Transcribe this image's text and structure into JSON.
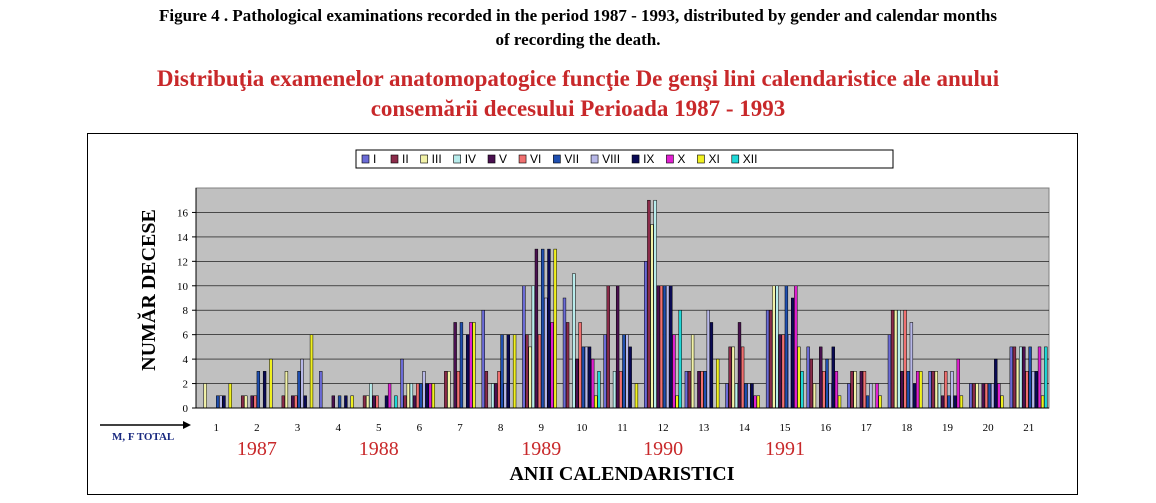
{
  "caption": {
    "line1": "Figure 4 . Pathological examinations recorded in the period 1987 - 1993, distributed by gender and calendar months",
    "line2": "of recording the death."
  },
  "title": {
    "line1": "Distribuţia examenelor anatomopatogice funcţie De genşi lini calendaristice ale anului",
    "line2": "consemării decesului Perioada 1987 - 1993"
  },
  "chart_data": {
    "type": "bar",
    "ylabel": "NUMĂR DECESE",
    "xlabel": "ANII CALENDARISTICI",
    "corner_label": "M, F TOTAL",
    "ylim": [
      0,
      18
    ],
    "yticks": [
      0,
      2,
      4,
      6,
      8,
      10,
      12,
      14,
      16
    ],
    "grid": true,
    "legend_position": "top",
    "categories": [
      "1",
      "2",
      "3",
      "4",
      "5",
      "6",
      "7",
      "8",
      "9",
      "10",
      "11",
      "12",
      "13",
      "14",
      "15",
      "16",
      "17",
      "18",
      "19",
      "20",
      "21"
    ],
    "year_labels": [
      {
        "text": "1987",
        "center_category": 1.5
      },
      {
        "text": "1988",
        "center_category": 4.5
      },
      {
        "text": "1989",
        "center_category": 8.5
      },
      {
        "text": "1990",
        "center_category": 11.5
      },
      {
        "text": "1991",
        "center_category": 14.5
      }
    ],
    "series": [
      {
        "name": "I",
        "color": "#6b6bd6",
        "values": [
          0,
          0,
          0,
          3,
          0,
          4,
          0,
          8,
          10,
          9,
          6,
          12,
          3,
          2,
          8,
          5,
          2,
          6,
          3,
          2,
          5
        ]
      },
      {
        "name": "II",
        "color": "#8b2b4a",
        "values": [
          0,
          1,
          1,
          0,
          1,
          1,
          3,
          3,
          6,
          7,
          10,
          17,
          3,
          5,
          8,
          4,
          3,
          8,
          3,
          2,
          5
        ]
      },
      {
        "name": "III",
        "color": "#f2f2a8",
        "values": [
          2,
          1,
          3,
          0,
          1,
          2,
          3,
          0,
          5,
          0,
          0,
          15,
          6,
          5,
          10,
          2,
          3,
          8,
          3,
          2,
          4
        ]
      },
      {
        "name": "IV",
        "color": "#b8ecec",
        "values": [
          0,
          0,
          0,
          0,
          2,
          2,
          0,
          2,
          10,
          11,
          3,
          17,
          0,
          2,
          10,
          0,
          0,
          8,
          2,
          0,
          5
        ]
      },
      {
        "name": "V",
        "color": "#4a1050",
        "values": [
          0,
          1,
          1,
          1,
          1,
          1,
          7,
          2,
          13,
          4,
          10,
          10,
          3,
          7,
          6,
          5,
          3,
          3,
          1,
          2,
          5
        ]
      },
      {
        "name": "VI",
        "color": "#f07070",
        "values": [
          0,
          1,
          1,
          0,
          1,
          2,
          3,
          3,
          6,
          7,
          3,
          10,
          3,
          5,
          6,
          3,
          3,
          8,
          3,
          2,
          3
        ]
      },
      {
        "name": "VII",
        "color": "#1f4fb0",
        "values": [
          1,
          3,
          3,
          1,
          0,
          2,
          7,
          6,
          13,
          5,
          6,
          10,
          3,
          2,
          10,
          4,
          1,
          3,
          1,
          2,
          5
        ]
      },
      {
        "name": "VIII",
        "color": "#b8b8e8",
        "values": [
          1,
          0,
          4,
          0,
          0,
          3,
          0,
          2,
          9,
          5,
          6,
          10,
          8,
          2,
          6,
          2,
          2,
          7,
          3,
          2,
          3
        ]
      },
      {
        "name": "IX",
        "color": "#0a0a55",
        "values": [
          1,
          3,
          1,
          1,
          1,
          2,
          6,
          6,
          13,
          5,
          5,
          10,
          7,
          2,
          9,
          5,
          0,
          2,
          1,
          4,
          3
        ]
      },
      {
        "name": "X",
        "color": "#e020d0",
        "values": [
          0,
          0,
          0,
          0,
          2,
          2,
          7,
          0,
          7,
          4,
          0,
          6,
          0,
          1,
          10,
          3,
          2,
          3,
          4,
          2,
          5
        ]
      },
      {
        "name": "XI",
        "color": "#f0f020",
        "values": [
          2,
          4,
          6,
          1,
          0,
          2,
          7,
          6,
          13,
          1,
          2,
          1,
          4,
          1,
          5,
          1,
          1,
          3,
          1,
          1,
          1
        ]
      },
      {
        "name": "XII",
        "color": "#20d8d8",
        "values": [
          0,
          0,
          0,
          0,
          1,
          0,
          0,
          0,
          0,
          3,
          0,
          8,
          0,
          0,
          3,
          0,
          0,
          0,
          0,
          0,
          5
        ]
      }
    ]
  }
}
